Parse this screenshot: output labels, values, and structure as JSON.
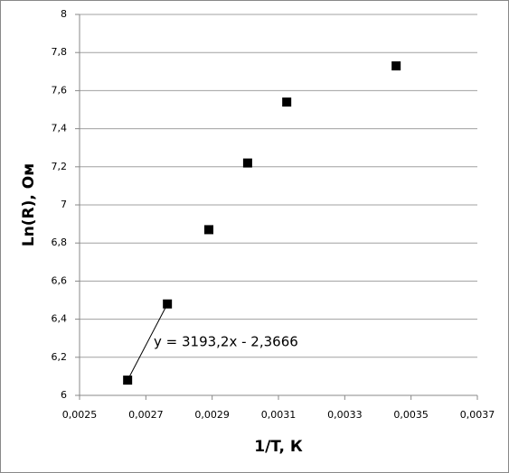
{
  "chart_data": {
    "type": "scatter",
    "x_label": "1/T,  К",
    "y_label": "Ln(R), Ом",
    "annotation": "y = 3193,2x - 2,3666",
    "series": [
      {
        "color": "#000000",
        "x": [
          0.002645,
          0.002765,
          0.00289,
          0.003007,
          0.003125,
          0.003455
        ],
        "values": [
          6.08,
          6.48,
          6.87,
          7.22,
          7.54,
          7.73
        ]
      }
    ],
    "xlim": [
      0.0025,
      0.0037
    ],
    "xticks": [
      {
        "value": 0.0025,
        "label": "0,0025"
      },
      {
        "value": 0.0027,
        "label": "0,0027"
      },
      {
        "value": 0.0029,
        "label": "0,0029"
      },
      {
        "value": 0.0031,
        "label": "0,0031"
      },
      {
        "value": 0.0033,
        "label": "0,0033"
      },
      {
        "value": 0.0035,
        "label": "0,0035"
      },
      {
        "value": 0.0037,
        "label": "0,0037"
      }
    ],
    "ylim": [
      6,
      8
    ],
    "yticks": [
      6,
      {
        "value": 6.2,
        "label": "6,2"
      },
      {
        "value": 6.4,
        "label": "6,4"
      },
      {
        "value": 6.6,
        "label": "6,6"
      },
      {
        "value": 6.8,
        "label": "6,8"
      },
      7,
      {
        "value": 7.2,
        "label": "7,2"
      },
      {
        "value": 7.4,
        "label": "7,4"
      },
      {
        "value": 7.6,
        "label": "7,6"
      },
      {
        "value": 7.8,
        "label": "7,8"
      },
      8
    ],
    "grid": true
  }
}
